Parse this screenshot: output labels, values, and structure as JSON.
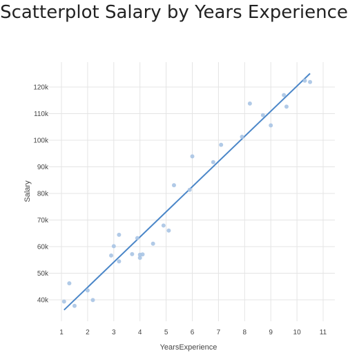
{
  "page": {
    "title": "Scatterplot Salary by Years Experience"
  },
  "colors": {
    "point": "#a9c4e4",
    "fit_line": "#4a86c8",
    "grid": "#e4e4e4",
    "axis": "#444444"
  },
  "chart_data": {
    "type": "scatter",
    "title": "Scatterplot Salary by Years Experience",
    "xlabel": "YearsExperience",
    "ylabel": "Salary",
    "xlim": [
      0.5,
      11.3
    ],
    "ylim": [
      32000,
      126000
    ],
    "x_ticks": [
      1,
      2,
      3,
      4,
      5,
      6,
      7,
      8,
      9,
      10,
      11
    ],
    "x_tick_labels": [
      "1",
      "2",
      "3",
      "4",
      "5",
      "6",
      "7",
      "8",
      "9",
      "10",
      "11"
    ],
    "y_ticks": [
      40000,
      50000,
      60000,
      70000,
      80000,
      90000,
      100000,
      110000,
      120000
    ],
    "y_tick_labels": [
      "40k",
      "50k",
      "60k",
      "70k",
      "80k",
      "90k",
      "100k",
      "110k",
      "120k"
    ],
    "grid": true,
    "series": [
      {
        "points": [
          {
            "x": 1.1,
            "y": 39343
          },
          {
            "x": 1.3,
            "y": 46205
          },
          {
            "x": 1.5,
            "y": 37731
          },
          {
            "x": 2.0,
            "y": 43525
          },
          {
            "x": 2.2,
            "y": 39891
          },
          {
            "x": 2.9,
            "y": 56642
          },
          {
            "x": 3.0,
            "y": 60150
          },
          {
            "x": 3.2,
            "y": 54445
          },
          {
            "x": 3.2,
            "y": 64445
          },
          {
            "x": 3.7,
            "y": 57189
          },
          {
            "x": 3.9,
            "y": 63218
          },
          {
            "x": 4.0,
            "y": 55794
          },
          {
            "x": 4.0,
            "y": 56957
          },
          {
            "x": 4.1,
            "y": 57081
          },
          {
            "x": 4.5,
            "y": 61111
          },
          {
            "x": 4.9,
            "y": 67938
          },
          {
            "x": 5.1,
            "y": 66029
          },
          {
            "x": 5.3,
            "y": 83088
          },
          {
            "x": 5.9,
            "y": 81363
          },
          {
            "x": 6.0,
            "y": 93940
          },
          {
            "x": 6.8,
            "y": 91738
          },
          {
            "x": 7.1,
            "y": 98273
          },
          {
            "x": 7.9,
            "y": 101302
          },
          {
            "x": 8.2,
            "y": 113812
          },
          {
            "x": 8.7,
            "y": 109431
          },
          {
            "x": 9.0,
            "y": 105582
          },
          {
            "x": 9.5,
            "y": 116969
          },
          {
            "x": 9.6,
            "y": 112635
          },
          {
            "x": 10.3,
            "y": 122391
          },
          {
            "x": 10.5,
            "y": 121872
          }
        ]
      }
    ],
    "fit_line": {
      "x": [
        1.1,
        10.5
      ],
      "y": [
        36188,
        125100
      ]
    }
  }
}
